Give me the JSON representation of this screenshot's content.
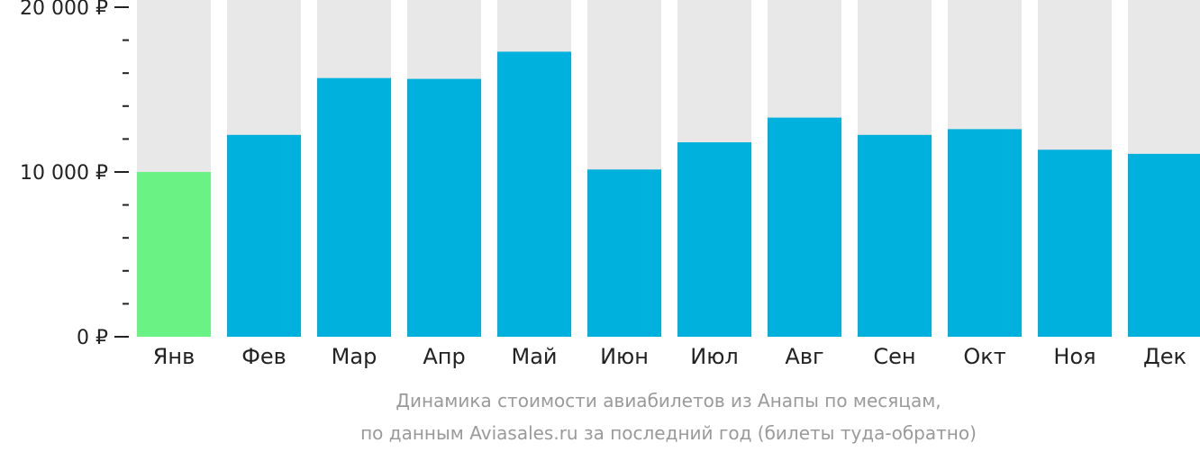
{
  "chart_data": {
    "type": "bar",
    "categories": [
      "Янв",
      "Фев",
      "Мар",
      "Апр",
      "Май",
      "Июн",
      "Июл",
      "Авг",
      "Сен",
      "Окт",
      "Ноя",
      "Дек"
    ],
    "values": [
      10000,
      12250,
      15700,
      15650,
      17300,
      10150,
      11800,
      13300,
      12250,
      12600,
      11350,
      11100
    ],
    "ylim": [
      0,
      20000
    ],
    "y_ticks": [
      {
        "value": 0,
        "label": "0 ₽"
      },
      {
        "value": 10000,
        "label": "10 000 ₽"
      },
      {
        "value": 20000,
        "label": "20 000 ₽"
      }
    ],
    "minor_tick_step": 2000,
    "highlight_index": 0,
    "colors": {
      "bar": "#00b0dd",
      "highlight": "#6bf285",
      "background_bar": "#e8e8e8",
      "axis": "#222222",
      "caption": "#9a9a9a"
    },
    "caption_lines": [
      "Динамика стоимости авиабилетов из Анапы по месяцам,",
      "по данным Aviasales.ru за последний год (билеты туда-обратно)"
    ]
  }
}
